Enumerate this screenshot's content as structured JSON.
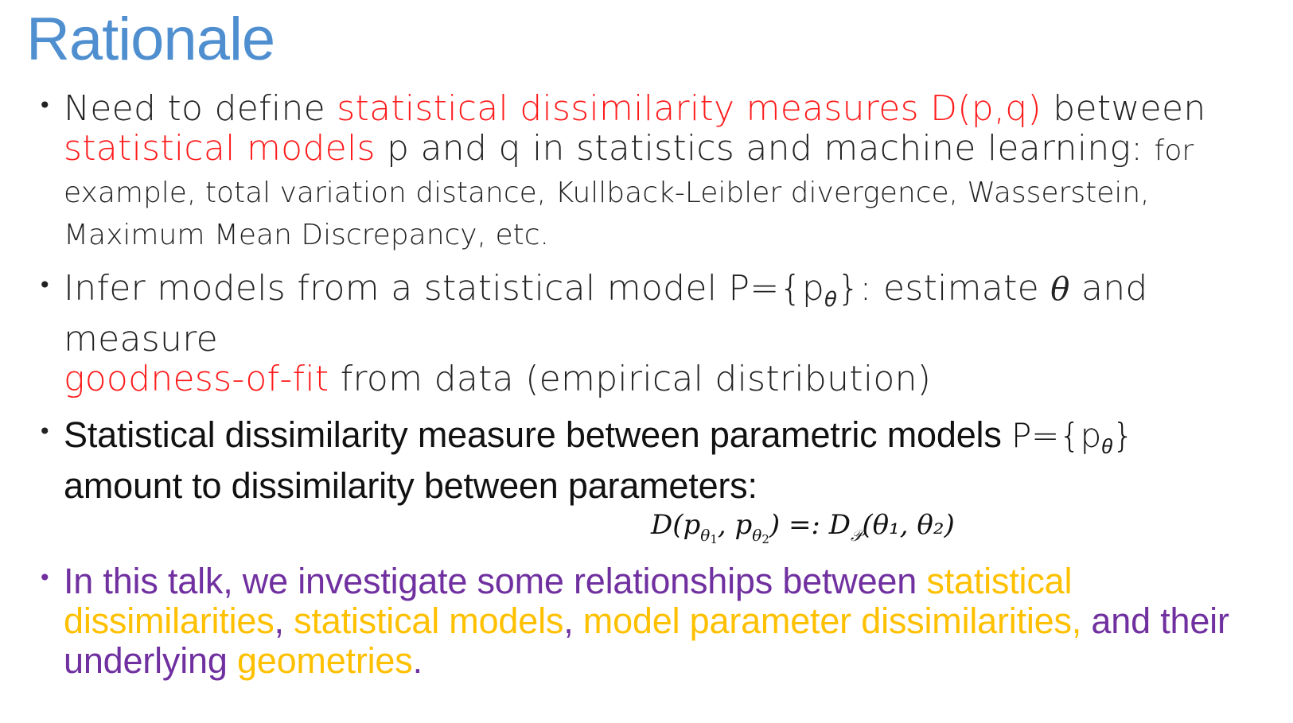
{
  "slide": {
    "title": "Rationale"
  },
  "bullet1": {
    "t1": "Need to define ",
    "t2": "statistical dissimilarity measures D(p,q)",
    "t3": " between ",
    "t4": "statistical models",
    "t5": " p and q in statistics and machine learning: ",
    "t6": "for example, total variation distance, Kullback-Leibler divergence, Wasserstein, Maximum Mean Discrepancy, etc."
  },
  "bullet2": {
    "t1": "Infer models from a statistical model P={p",
    "sub": "θ",
    "t2": "}: estimate ",
    "theta": "θ",
    "t3": " and measure ",
    "t4": "goodness-of-fit",
    "t5": " from data (empirical distribution)"
  },
  "bullet3": {
    "t1": "Statistical dissimilarity measure between parametric models ",
    "t2": "P={p",
    "sub": "θ",
    "t3": "}",
    "t4": " amount to dissimilarity between parameters:"
  },
  "formula": {
    "text_left": "D(p",
    "sub1": "θ",
    "sub1_idx": "1",
    "comma": ", p",
    "sub2": "θ",
    "sub2_idx": "2",
    "middle": ") =: D",
    "subP": "𝒫",
    "right": "(θ₁, θ₂)"
  },
  "bullet4": {
    "t1": "In this talk, we investigate some relationships between ",
    "t2": "statistical dissimilarities",
    "t3": ", ",
    "t4": "statistical models",
    "t5": ", ",
    "t6": "model parameter dissimilarities,",
    "t7": " and their underlying ",
    "t8": "geometries",
    "t9": "."
  },
  "colors": {
    "title": "#4f8fd0",
    "highlight_red": "#ff1a1a",
    "purple": "#7030a0",
    "gold": "#ffc000"
  }
}
